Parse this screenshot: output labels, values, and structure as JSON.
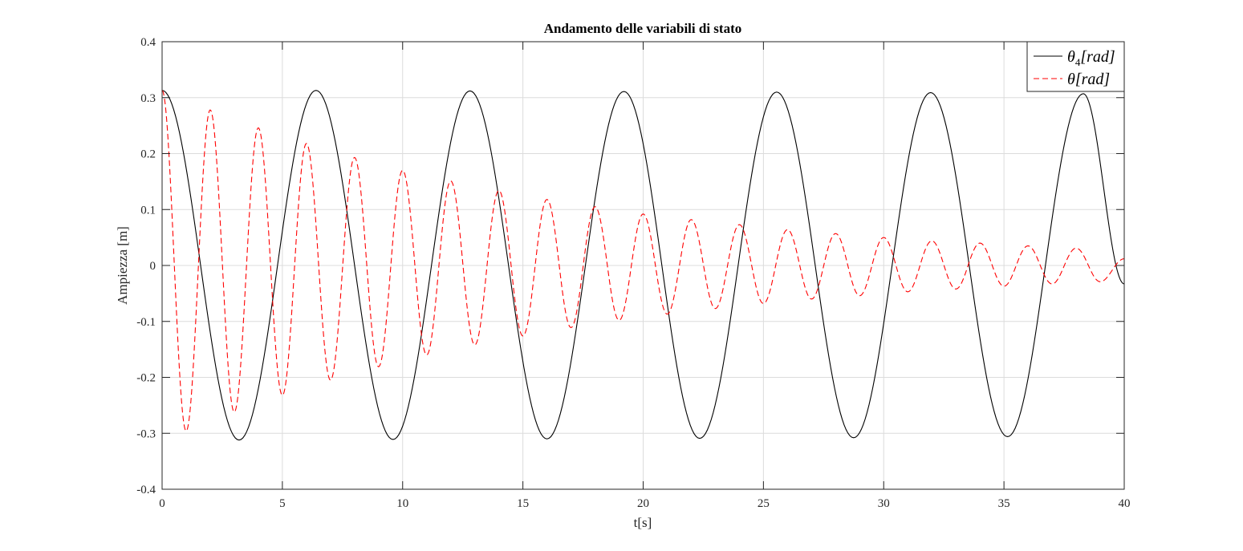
{
  "chart_data": {
    "type": "line",
    "title": "Andamento delle variabili di stato",
    "xlabel": "t[s]",
    "ylabel": "Ampiezza [m]",
    "xlim": [
      0,
      40
    ],
    "ylim": [
      -0.4,
      0.4
    ],
    "xticks": [
      "0",
      "5",
      "10",
      "15",
      "20",
      "25",
      "30",
      "35",
      "40"
    ],
    "yticks": [
      "-0.4",
      "-0.3",
      "-0.2",
      "-0.1",
      "0",
      "0.1",
      "0.2",
      "0.3",
      "0.4"
    ],
    "grid": true,
    "legend_position": "top-right",
    "series": [
      {
        "name": "θ4[rad]",
        "legend": {
          "base": "θ",
          "sub": "4",
          "rest": "[rad]"
        },
        "color": "#000000",
        "style": "solid",
        "x": [
          0,
          3.2,
          6.4,
          9.6,
          12.8,
          16.0,
          19.2,
          22.35,
          25.55,
          28.75,
          31.95,
          35.15,
          38.3,
          40
        ],
        "y": [
          0.313,
          -0.312,
          0.313,
          -0.311,
          0.312,
          -0.31,
          0.311,
          -0.309,
          0.31,
          -0.308,
          0.309,
          -0.306,
          0.307,
          -0.033
        ]
      },
      {
        "name": "θ[rad]",
        "legend": {
          "base": "θ",
          "sub": "",
          "rest": "[rad]"
        },
        "color": "#ff0000",
        "style": "dashed",
        "x": [
          0,
          1.0,
          2.0,
          3.0,
          4.0,
          5.0,
          6.0,
          7.0,
          8.0,
          9.0,
          10.0,
          11.0,
          12.0,
          13.0,
          14.0,
          15.0,
          16.0,
          17.0,
          18.0,
          19.0,
          20.0,
          21.0,
          22.0,
          23.0,
          24.0,
          25.0,
          26.0,
          27.0,
          28.0,
          29.0,
          30.0,
          31.0,
          32.0,
          33.0,
          34.0,
          35.0,
          36.0,
          37.0,
          38.0,
          39.0,
          40.0
        ],
        "y": [
          0.313,
          -0.296,
          0.278,
          -0.262,
          0.246,
          -0.232,
          0.218,
          -0.205,
          0.193,
          -0.181,
          0.17,
          -0.16,
          0.151,
          -0.142,
          0.134,
          -0.126,
          0.118,
          -0.111,
          0.105,
          -0.098,
          0.092,
          -0.087,
          0.082,
          -0.077,
          0.073,
          -0.068,
          0.064,
          -0.06,
          0.057,
          -0.054,
          0.05,
          -0.047,
          0.044,
          -0.042,
          0.04,
          -0.037,
          0.035,
          -0.033,
          0.031,
          -0.029,
          0.012
        ]
      }
    ]
  }
}
